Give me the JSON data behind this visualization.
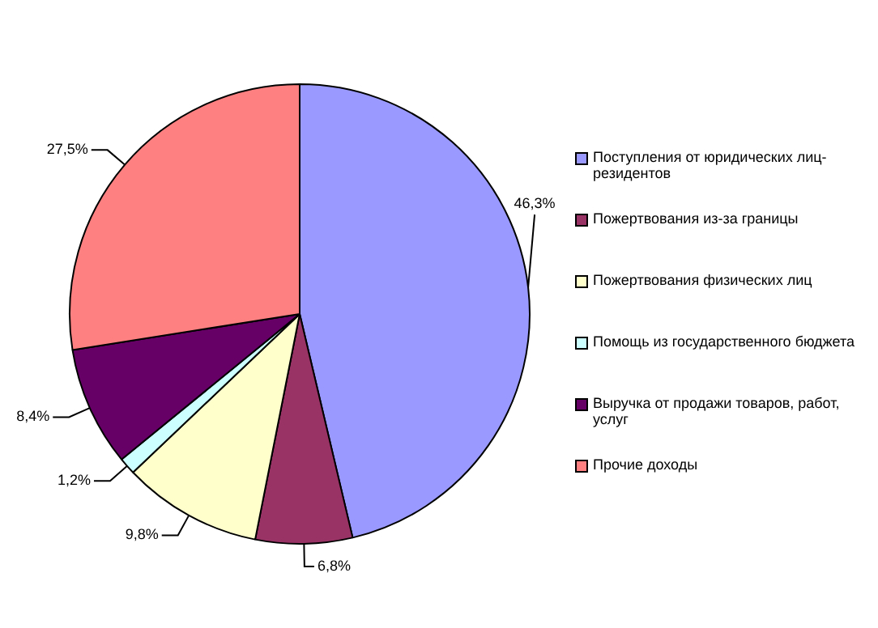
{
  "chart_data": {
    "type": "pie",
    "categories": [
      "Поступления от юридических лиц-резидентов",
      "Пожертвования из-за границы",
      "Пожертвования физических лиц",
      "Помощь из государственного бюджета",
      "Выручка от продажи товаров, работ, услуг",
      "Прочие доходы"
    ],
    "values": [
      46.3,
      6.8,
      9.8,
      1.2,
      8.4,
      27.5
    ],
    "value_labels": [
      "46,3%",
      "6,8%",
      "9,8%",
      "1,2%",
      "8,4%",
      "27,5%"
    ],
    "colors": [
      "#9999ff",
      "#993366",
      "#ffffcc",
      "#ccffff",
      "#660066",
      "#ff8080"
    ],
    "legend": "right"
  }
}
